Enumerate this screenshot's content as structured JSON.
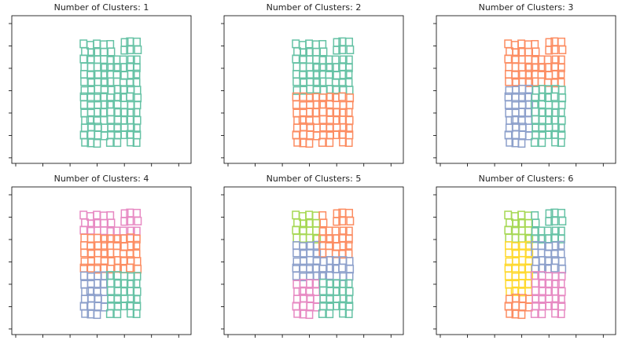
{
  "panels": [
    {
      "title": "Number of Clusters: 1",
      "colors": [
        "#66c2a5"
      ]
    },
    {
      "title": "Number of Clusters: 2",
      "colors": [
        "#66c2a5",
        "#fc8d62"
      ]
    },
    {
      "title": "Number of Clusters: 3",
      "colors": [
        "#fc8d62",
        "#8da0cb",
        "#66c2a5"
      ]
    },
    {
      "title": "Number of Clusters: 4",
      "colors": [
        "#e78ac3",
        "#fc8d62",
        "#8da0cb",
        "#66c2a5"
      ]
    },
    {
      "title": "Number of Clusters: 5",
      "colors": [
        "#a6d854",
        "#fc8d62",
        "#8da0cb",
        "#e78ac3",
        "#66c2a5"
      ]
    },
    {
      "title": "Number of Clusters: 6",
      "colors": [
        "#a6d854",
        "#66c2a5",
        "#8da0cb",
        "#ffd92f",
        "#e78ac3",
        "#fc8d62"
      ]
    }
  ]
}
